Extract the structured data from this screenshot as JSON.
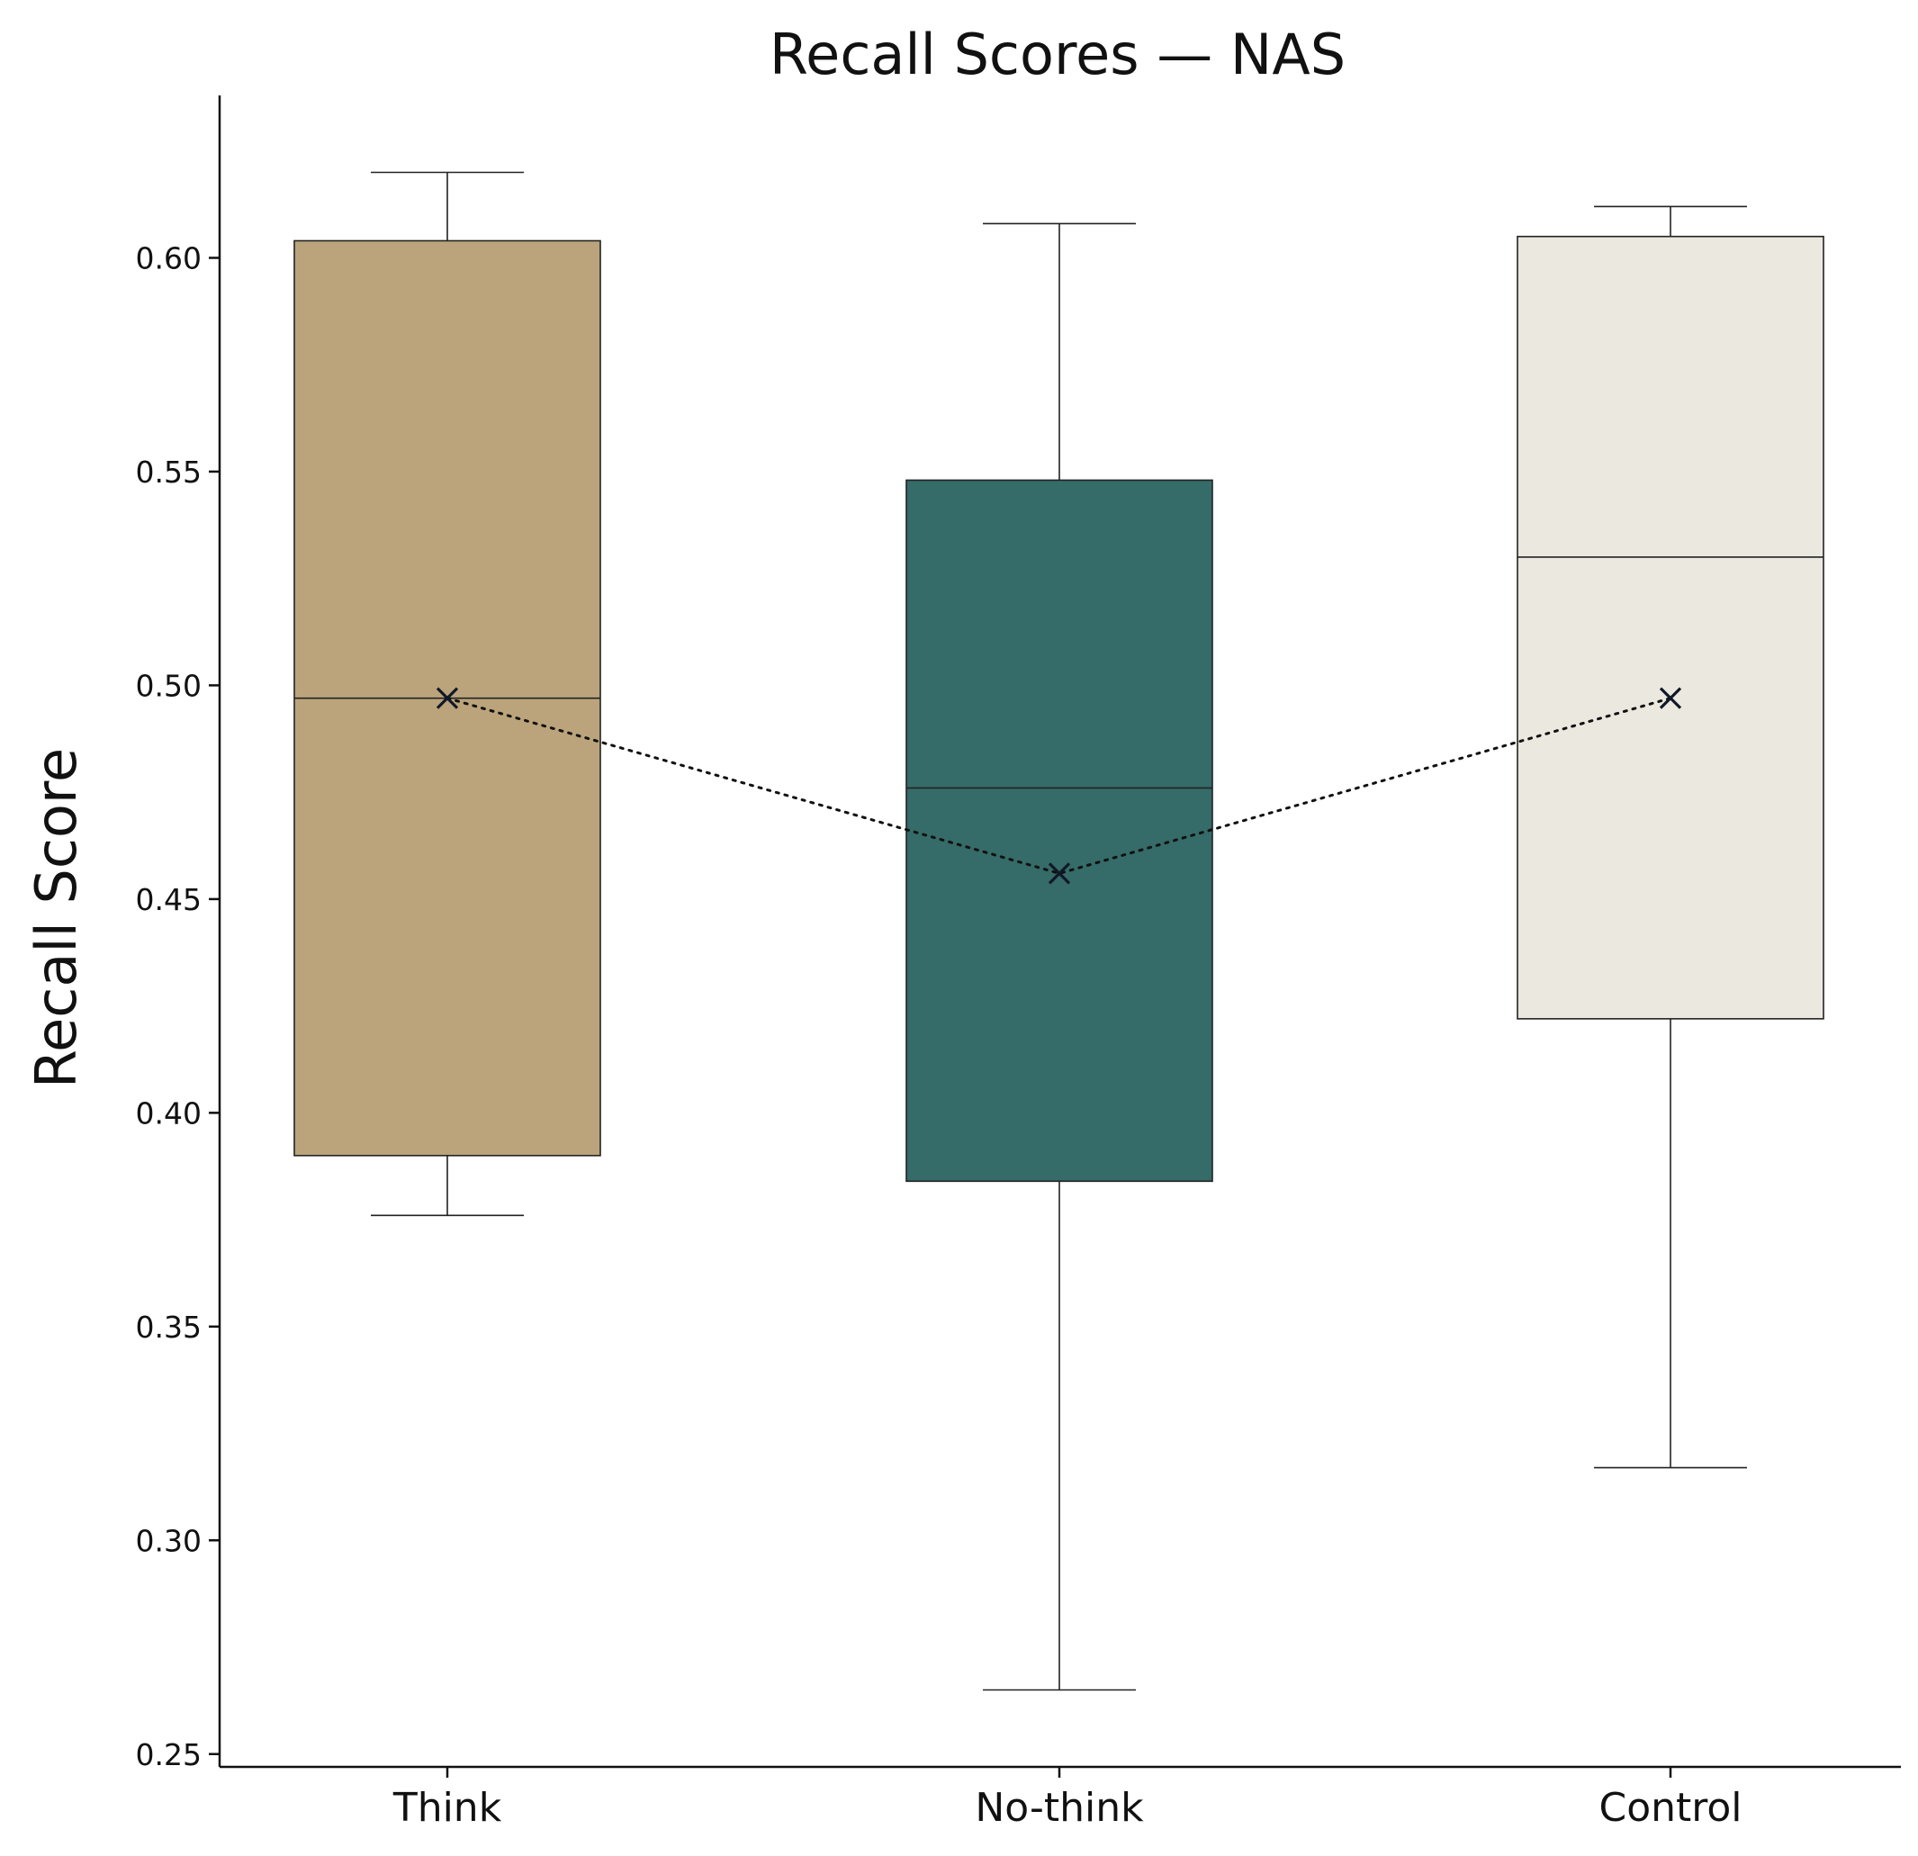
{
  "chart_data": {
    "type": "box",
    "title": "Recall Scores — NAS",
    "xlabel": "",
    "ylabel": "Recall Score",
    "ylim": [
      0.247,
      0.638
    ],
    "yticks": [
      0.25,
      0.3,
      0.35,
      0.4,
      0.45,
      0.5,
      0.55,
      0.6
    ],
    "ytick_labels": [
      "0.25",
      "0.30",
      "0.35",
      "0.40",
      "0.45",
      "0.50",
      "0.55",
      "0.60"
    ],
    "grid": false,
    "categories": [
      "Think",
      "No-think",
      "Control"
    ],
    "boxes": [
      {
        "category": "Think",
        "whisker_low": 0.376,
        "q1": 0.39,
        "median": 0.497,
        "q3": 0.604,
        "whisker_high": 0.62,
        "mean": 0.497,
        "color": "#BBA47B"
      },
      {
        "category": "No-think",
        "whisker_low": 0.265,
        "q1": 0.384,
        "median": 0.476,
        "q3": 0.548,
        "whisker_high": 0.608,
        "mean": 0.456,
        "color": "#356B68"
      },
      {
        "category": "Control",
        "whisker_low": 0.317,
        "q1": 0.422,
        "median": 0.53,
        "q3": 0.605,
        "whisker_high": 0.612,
        "mean": 0.497,
        "color": "#EBE8DF"
      }
    ],
    "mean_marker": "x",
    "mean_line": "dotted"
  }
}
